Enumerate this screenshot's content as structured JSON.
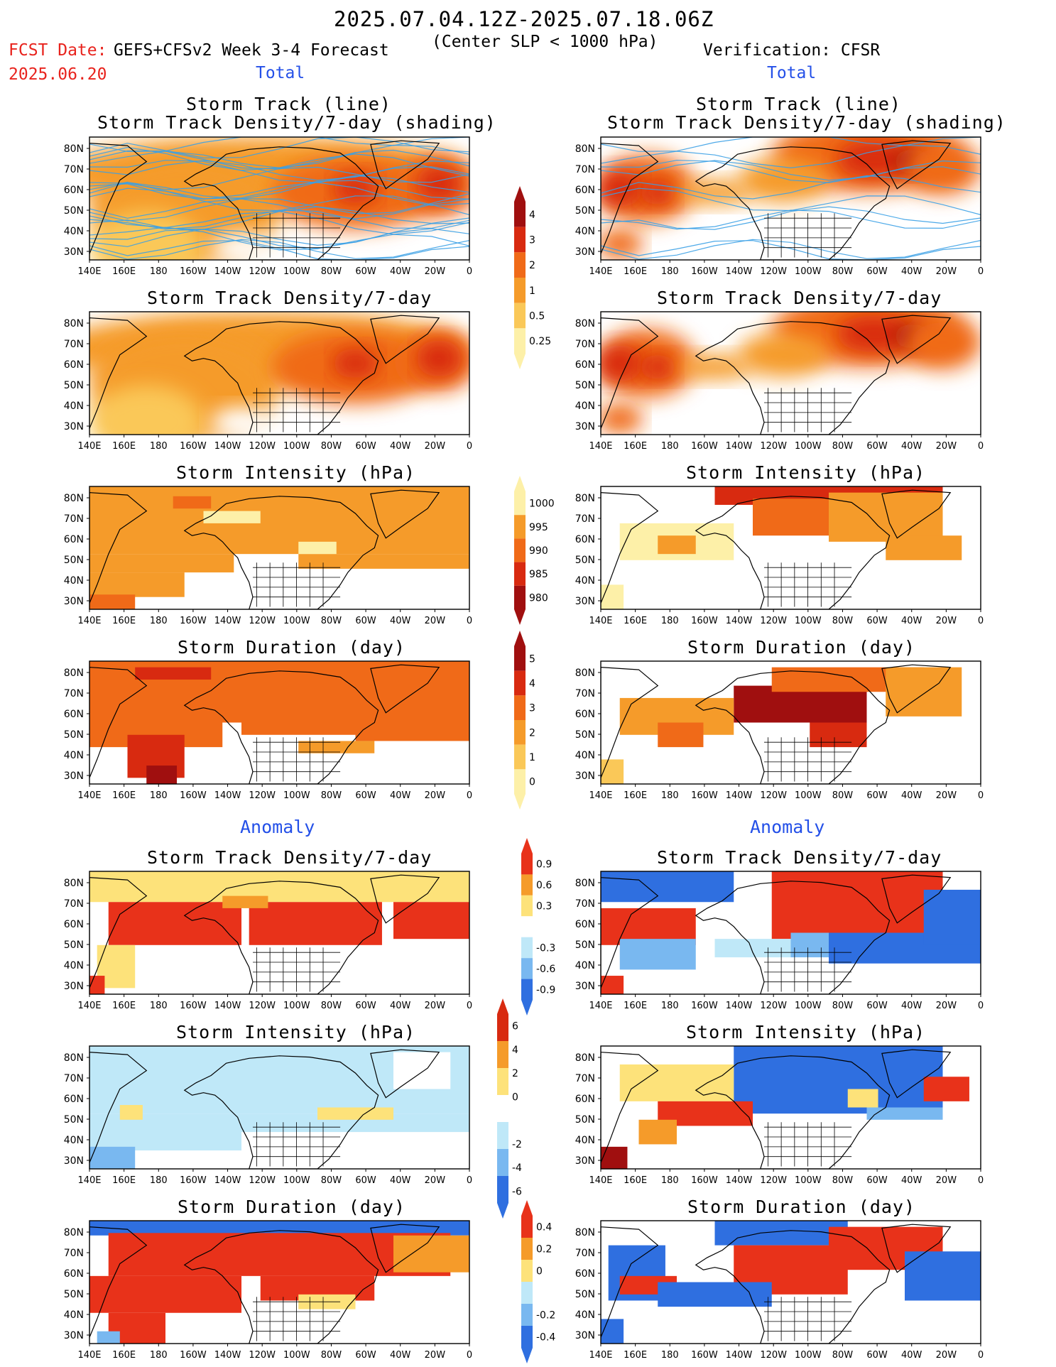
{
  "header": {
    "period": "2025.07.04.12Z-2025.07.18.06Z",
    "subtitle": "(Center SLP < 1000 hPa)",
    "fcst_label": "FCST Date:",
    "fcst_date": "2025.06.20",
    "model": "GEFS+CFSv2 Week 3-4 Forecast",
    "verification": "Verification: CFSR",
    "total_left": "Total",
    "total_right": "Total",
    "anomaly_left": "Anomaly",
    "anomaly_right": "Anomaly"
  },
  "axes": {
    "lon_labels": [
      "140E",
      "160E",
      "180",
      "160W",
      "140W",
      "120W",
      "100W",
      "80W",
      "60W",
      "40W",
      "20W",
      "0"
    ],
    "lat_labels": [
      "80N",
      "70N",
      "60N",
      "50N",
      "40N",
      "30N"
    ]
  },
  "panel_titles": {
    "track_line": "Storm Track (line)",
    "track_line_2": "Storm Track Density/7-day (shading)",
    "density": "Storm Track Density/7-day",
    "intensity": "Storm Intensity (hPa)",
    "duration": "Storm Duration (day)"
  },
  "colorbars": {
    "density_total": {
      "labels": [
        "4",
        "3",
        "2",
        "1",
        "0.5",
        "0.25"
      ],
      "colors": [
        "#a00f0f",
        "#d82a10",
        "#f06a18",
        "#f59b2a",
        "#fac858",
        "#fdf0a8"
      ]
    },
    "intensity_total": {
      "labels": [
        "1000",
        "995",
        "990",
        "985",
        "980"
      ],
      "colors": [
        "#fdf0a8",
        "#f59b2a",
        "#f06a18",
        "#d82a10",
        "#a00f0f"
      ]
    },
    "duration_total": {
      "labels": [
        "5",
        "4",
        "3",
        "2",
        "1",
        "0"
      ],
      "colors": [
        "#a00f0f",
        "#d82a10",
        "#f06a18",
        "#f59b2a",
        "#fac858",
        "#fdf0a8"
      ]
    },
    "density_anom": {
      "labels": [
        "0.9",
        "0.6",
        "0.3",
        "-0.3",
        "-0.6",
        "-0.9"
      ],
      "colors": [
        "#e8321a",
        "#f59b2a",
        "#fde27a",
        "#ffffff",
        "#bfe8f8",
        "#79b8f0",
        "#2f6fe0"
      ]
    },
    "intensity_anom": {
      "labels": [
        "6",
        "4",
        "2",
        "0",
        "-2",
        "-4",
        "-6"
      ],
      "colors": [
        "#d82a10",
        "#f59b2a",
        "#fde27a",
        "#ffffff",
        "#bfe8f8",
        "#79b8f0",
        "#2f6fe0"
      ]
    },
    "duration_anom": {
      "labels": [
        "0.4",
        "0.2",
        "0",
        "-0.2",
        "-0.4"
      ],
      "colors": [
        "#e8321a",
        "#f59b2a",
        "#fde27a",
        "#bfe8f8",
        "#79b8f0",
        "#2f6fe0"
      ]
    }
  }
}
